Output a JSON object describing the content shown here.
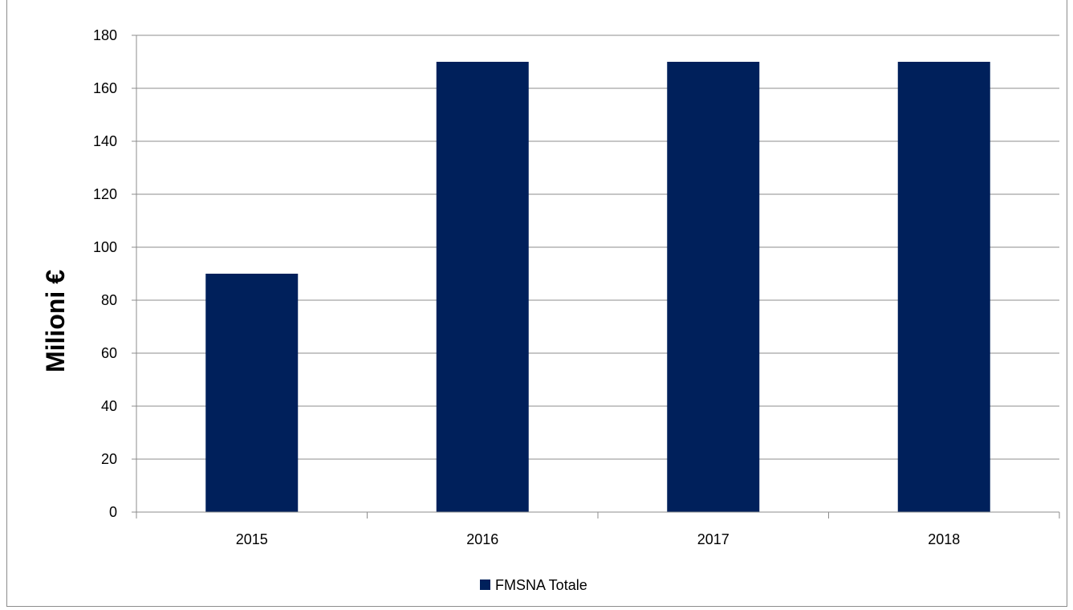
{
  "chart_data": {
    "type": "bar",
    "title": "",
    "xlabel": "",
    "ylabel": "Milioni €",
    "categories": [
      "2015",
      "2016",
      "2017",
      "2018"
    ],
    "series": [
      {
        "name": "FMSNA Totale",
        "values": [
          90,
          170,
          170,
          170
        ],
        "color": "#00205b"
      }
    ],
    "ylim": [
      0,
      180
    ],
    "yticks": [
      0,
      20,
      40,
      60,
      80,
      100,
      120,
      140,
      160,
      180
    ],
    "grid": true,
    "legend": "bottom-center"
  }
}
